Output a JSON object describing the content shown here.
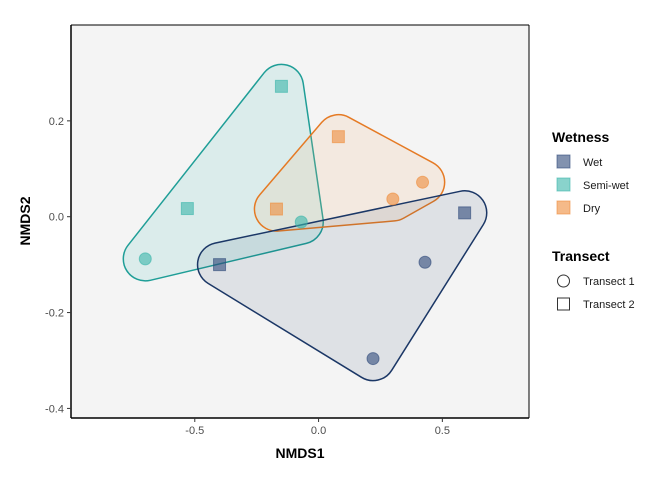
{
  "chart_data": {
    "type": "scatter",
    "title": "",
    "xlabel": "NMDS1",
    "ylabel": "NMDS2",
    "xlim": [
      -1.0,
      0.85
    ],
    "ylim": [
      -0.42,
      0.4
    ],
    "x_ticks": [
      -0.5,
      0.0,
      0.5
    ],
    "y_ticks": [
      0.2,
      0.0,
      -0.2,
      -0.4
    ],
    "x_tick_labels": [
      "-0.5",
      "0.0",
      "0.5"
    ],
    "y_tick_labels": [
      "0.2",
      "0.0",
      "-0.2",
      "-0.4"
    ],
    "grid": false,
    "background": "#f4f4f4",
    "legend_position": "right",
    "hull_groups": [
      "Semi-wet",
      "Dry",
      "Wet"
    ],
    "wetness_legend": {
      "title": "Wetness",
      "items": [
        {
          "label": "Wet",
          "color": "#2e4a7a"
        },
        {
          "label": "Semi-wet",
          "color": "#3bb5aa"
        },
        {
          "label": "Dry",
          "color": "#ef8c3a"
        }
      ]
    },
    "transect_legend": {
      "title": "Transect",
      "items": [
        {
          "label": "Transect 1",
          "shape": "circle"
        },
        {
          "label": "Transect 2",
          "shape": "square"
        }
      ]
    },
    "hull_colors": {
      "Wet": {
        "stroke": "#1b3766",
        "fill": "#1b3766"
      },
      "Semi-wet": {
        "stroke": "#1f9e97",
        "fill": "#5cc4c0"
      },
      "Dry": {
        "stroke": "#e57a24",
        "fill": "#f3b27a"
      }
    },
    "points": [
      {
        "group": "Semi-wet",
        "transect": "Transect 2",
        "x": -0.15,
        "y": 0.272
      },
      {
        "group": "Semi-wet",
        "transect": "Transect 2",
        "x": -0.53,
        "y": 0.017
      },
      {
        "group": "Semi-wet",
        "transect": "Transect 1",
        "x": -0.7,
        "y": -0.088
      },
      {
        "group": "Semi-wet",
        "transect": "Transect 1",
        "x": -0.07,
        "y": -0.011
      },
      {
        "group": "Dry",
        "transect": "Transect 2",
        "x": 0.08,
        "y": 0.167
      },
      {
        "group": "Dry",
        "transect": "Transect 2",
        "x": -0.17,
        "y": 0.016
      },
      {
        "group": "Dry",
        "transect": "Transect 1",
        "x": 0.3,
        "y": 0.037
      },
      {
        "group": "Dry",
        "transect": "Transect 1",
        "x": 0.42,
        "y": 0.072
      },
      {
        "group": "Wet",
        "transect": "Transect 2",
        "x": -0.4,
        "y": -0.1
      },
      {
        "group": "Wet",
        "transect": "Transect 2",
        "x": 0.59,
        "y": 0.008
      },
      {
        "group": "Wet",
        "transect": "Transect 1",
        "x": 0.43,
        "y": -0.095
      },
      {
        "group": "Wet",
        "transect": "Transect 1",
        "x": 0.22,
        "y": -0.296
      }
    ]
  }
}
